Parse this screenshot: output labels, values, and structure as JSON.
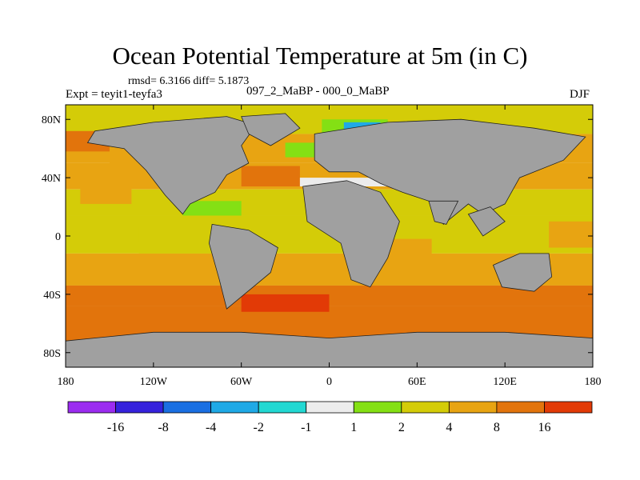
{
  "chart_data": {
    "type": "heatmap",
    "title": "Ocean Potential Temperature at 5m (in C)",
    "stats": "rmsd= 6.3166 diff= 5.1873",
    "experiment": "Expt = teyit1-teyfa3",
    "experiment_name": "097_2_MaBP - 000_0_MaBP",
    "season": "DJF",
    "x_ticks": [
      180,
      120,
      60,
      0,
      60,
      120,
      180
    ],
    "x_tick_labels": [
      "180",
      "120W",
      "60W",
      "0",
      "60E",
      "120E",
      "180"
    ],
    "x_tick_positions": [
      -180,
      -120,
      -60,
      0,
      60,
      120,
      180
    ],
    "y_tick_labels": [
      "80N",
      "40N",
      "0",
      "40S",
      "80S"
    ],
    "y_tick_positions": [
      80,
      40,
      0,
      -40,
      -80
    ],
    "xlim": [
      -180,
      180
    ],
    "ylim": [
      -90,
      90
    ],
    "colorbar": {
      "colors": [
        "#9b2cf0",
        "#3522dc",
        "#1a6fe2",
        "#1fa9e6",
        "#22d8d2",
        "#ececec",
        "#84e014",
        "#d4cc08",
        "#e8a412",
        "#e2740c",
        "#e23a06"
      ],
      "labels": [
        "-16",
        "-8",
        "-4",
        "-2",
        "-1",
        "1",
        "2",
        "4",
        "8",
        "16"
      ]
    },
    "land_color": "#a0a0a0",
    "field_description": "difference field; warm anomalies nearly everywhere, strongest (8-16) in the Southern Ocean and mid-latitudes, weak cooling in the Arctic"
  }
}
